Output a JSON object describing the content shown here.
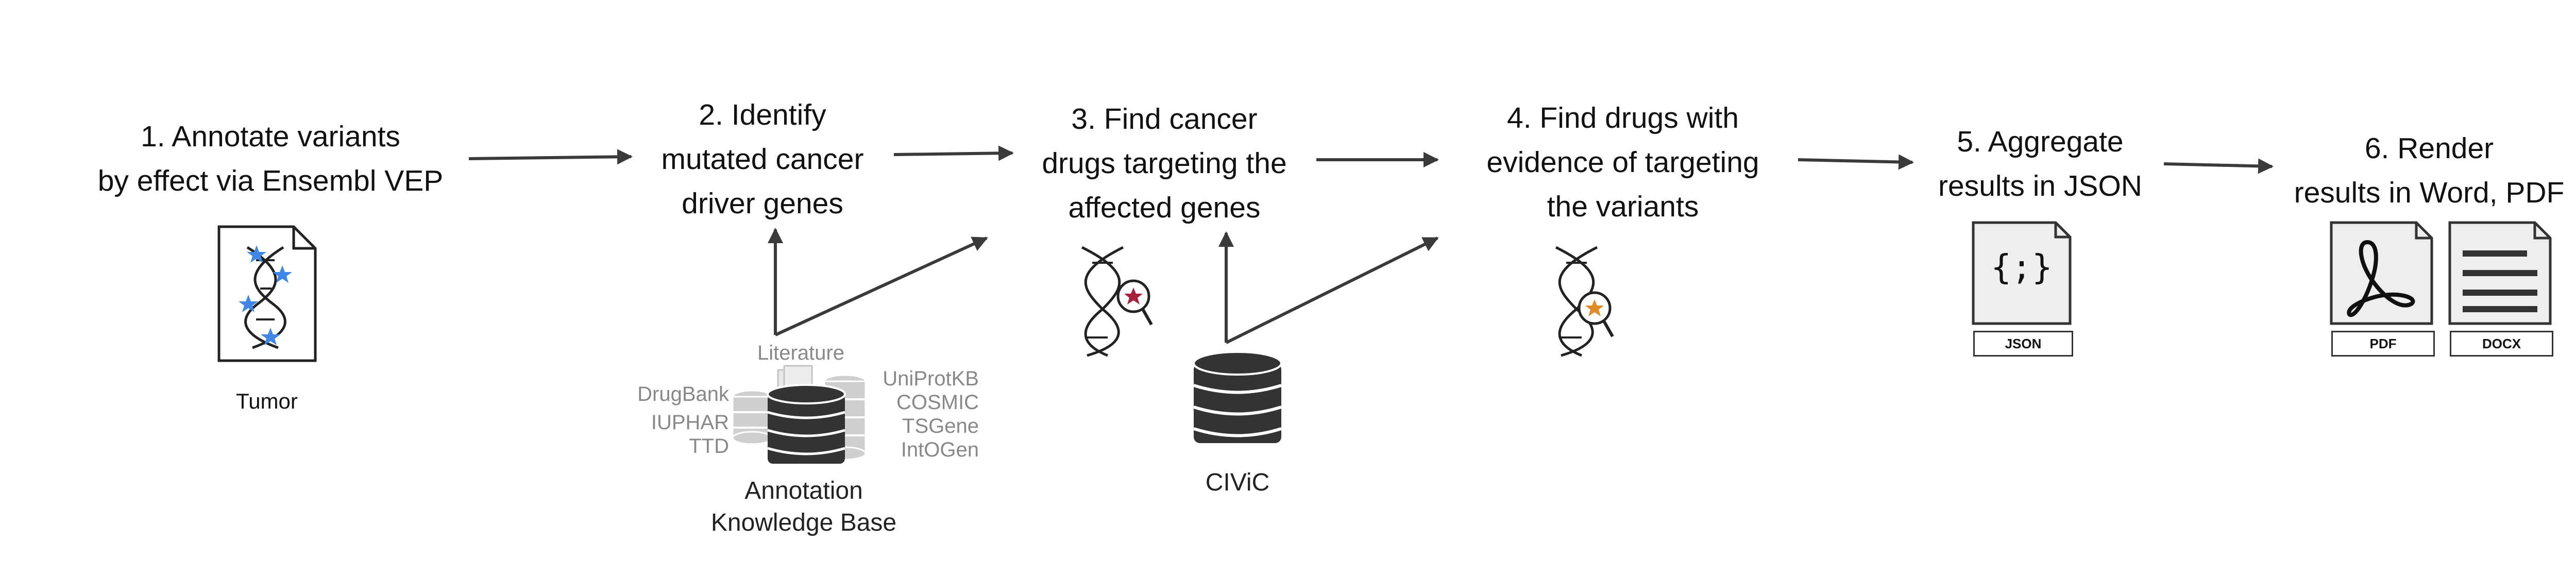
{
  "steps": [
    {
      "line1": "1. Annotate variants",
      "line2": "by effect via Ensembl VEP"
    },
    {
      "line1": "2. Identify",
      "line2": "mutated cancer",
      "line3": "driver genes"
    },
    {
      "line1": "3. Find cancer",
      "line2": "drugs targeting the",
      "line3": "affected genes"
    },
    {
      "line1": "4. Find drugs with",
      "line2": "evidence of targeting",
      "line3": "the variants"
    },
    {
      "line1": "5. Aggregate",
      "line2": "results in JSON"
    },
    {
      "line1": "6. Render",
      "line2": "results in Word, PDF"
    }
  ],
  "tumor": {
    "label": "Tumor"
  },
  "knowledge_base": {
    "title_line1": "Annotation",
    "title_line2": "Knowledge Base",
    "top_source": "Literature",
    "left_sources": [
      "DrugBank",
      "IUPHAR",
      "TTD"
    ],
    "right_sources": [
      "UniProtKB",
      "COSMIC",
      "TSGene",
      "IntOGen"
    ]
  },
  "civic": {
    "label": "CIViC"
  },
  "outputs": {
    "json_glyph": "{;}",
    "json_tag": "JSON",
    "pdf_tag": "PDF",
    "docx_tag": "DOCX"
  },
  "colors": {
    "arrow": "#3a3a3a",
    "db_dark": "#333333",
    "db_light": "#c4c4c4",
    "star_blue": "#3f86e6",
    "star_red": "#a8203c",
    "star_orange": "#e08a25",
    "file_fill": "#eeeeee"
  }
}
